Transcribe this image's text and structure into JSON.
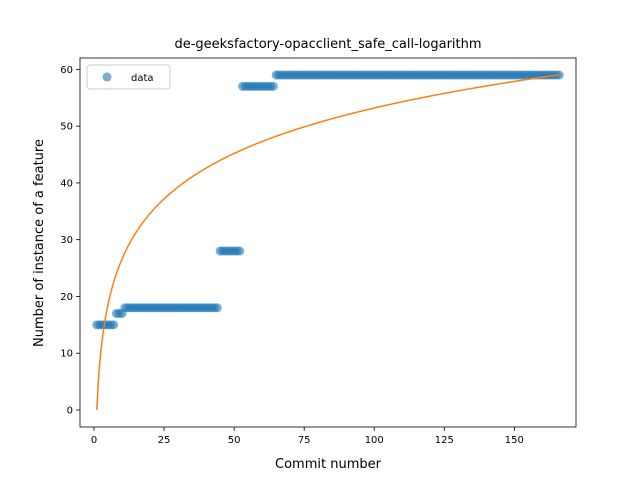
{
  "chart_data": {
    "type": "scatter",
    "title": "de-geeksfactory-opacclient_safe_call-logarithm",
    "xlabel": "Commit number",
    "ylabel": "Number of instance of a feature",
    "xlim": [
      -5,
      172
    ],
    "ylim": [
      -3,
      62
    ],
    "xticks": [
      0,
      25,
      50,
      75,
      100,
      125,
      150
    ],
    "yticks": [
      0,
      10,
      20,
      30,
      40,
      50,
      60
    ],
    "grid": false,
    "legend_position": "top-left",
    "colors": {
      "data": "#1f77b4",
      "fit": "#ff7f0e"
    },
    "series": [
      {
        "name": "data",
        "kind": "points",
        "segments": [
          {
            "x_from": 1,
            "x_to": 7,
            "y": 15
          },
          {
            "x_from": 8,
            "x_to": 10,
            "y": 17
          },
          {
            "x_from": 11,
            "x_to": 44,
            "y": 18
          },
          {
            "x_from": 45,
            "x_to": 52,
            "y": 28
          },
          {
            "x_from": 53,
            "x_to": 64,
            "y": 57
          },
          {
            "x_from": 65,
            "x_to": 166,
            "y": 59
          }
        ]
      },
      {
        "kind": "line",
        "model": "logarithmic",
        "a": 0.0,
        "b": 11.55,
        "x_from": 1,
        "x_to": 166
      }
    ]
  }
}
